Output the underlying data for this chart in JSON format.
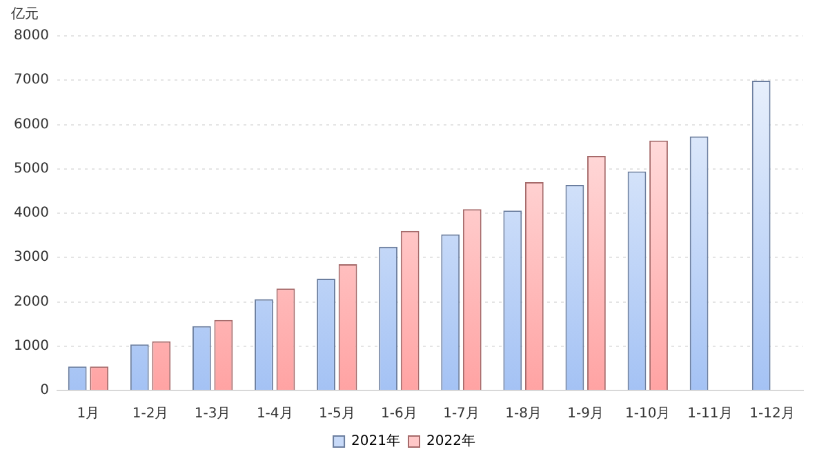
{
  "chart_data": {
    "type": "bar",
    "ylabel": "亿元",
    "categories": [
      "1月",
      "1-2月",
      "1-3月",
      "1-4月",
      "1-5月",
      "1-6月",
      "1-7月",
      "1-8月",
      "1-9月",
      "1-10月",
      "1-11月",
      "1-12月"
    ],
    "series": [
      {
        "name": "2021年",
        "color": "#a4c2f4",
        "values": [
          540,
          1040,
          1450,
          2060,
          2520,
          3240,
          3520,
          4060,
          4640,
          4940,
          5730,
          6990
        ]
      },
      {
        "name": "2022年",
        "color": "#ffa3a3",
        "values": [
          540,
          1110,
          1590,
          2300,
          2850,
          3600,
          4090,
          4700,
          5290,
          5640,
          null,
          null
        ]
      }
    ],
    "ylim": [
      0,
      8000
    ],
    "yticks": [
      0,
      1000,
      2000,
      3000,
      4000,
      5000,
      6000,
      7000,
      8000
    ],
    "grid": "y",
    "legend": "bottom"
  }
}
